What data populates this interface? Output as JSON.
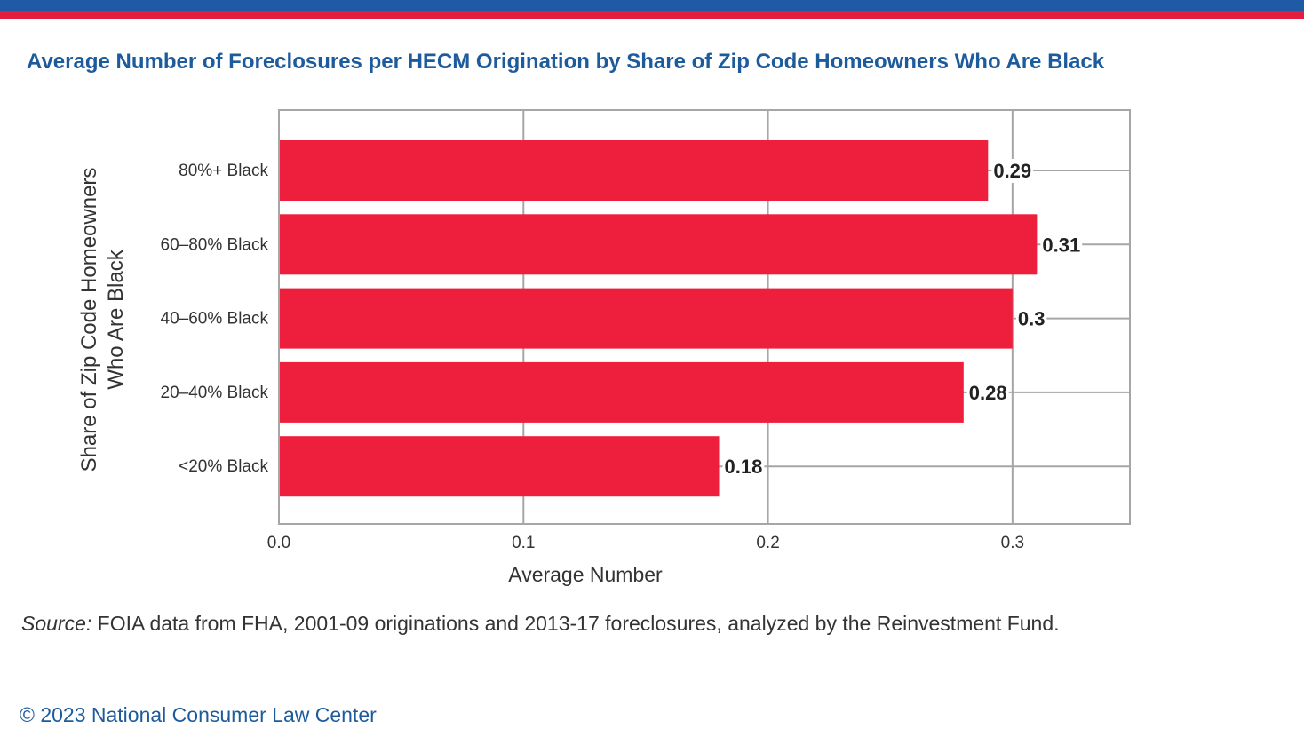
{
  "header": {
    "title": "Average Number of Foreclosures per HECM Origination by Share of Zip Code Homeowners Who Are Black",
    "stripe_colors": [
      "#1f5aa6",
      "#e41e3f"
    ]
  },
  "chart_data": {
    "type": "bar",
    "orientation": "horizontal",
    "categories": [
      "80%+ Black",
      "60–80% Black",
      "40–60% Black",
      "20–40% Black",
      "<20% Black"
    ],
    "values": [
      0.29,
      0.31,
      0.3,
      0.28,
      0.18
    ],
    "value_labels": [
      "0.29",
      "0.31",
      "0.3",
      "0.28",
      "0.18"
    ],
    "title": "Average Number of Foreclosures per HECM Origination by Share of Zip Code Homeowners Who Are Black",
    "xlabel": "Average Number",
    "ylabel_lines": [
      "Share of Zip Code Homeowners",
      "Who Are Black"
    ],
    "xlim": [
      0,
      0.348
    ],
    "xticks": [
      0.0,
      0.1,
      0.2,
      0.3
    ],
    "xtick_labels": [
      "0.0",
      "0.1",
      "0.2",
      "0.3"
    ],
    "grid": true,
    "bar_color": "#ee1f3d"
  },
  "footer": {
    "source_label": "Source:",
    "source_text": " FOIA data from FHA, 2001-09 originations and 2013-17 foreclosures, analyzed by the Reinvestment Fund.",
    "copyright": "© 2023 National Consumer Law Center"
  }
}
